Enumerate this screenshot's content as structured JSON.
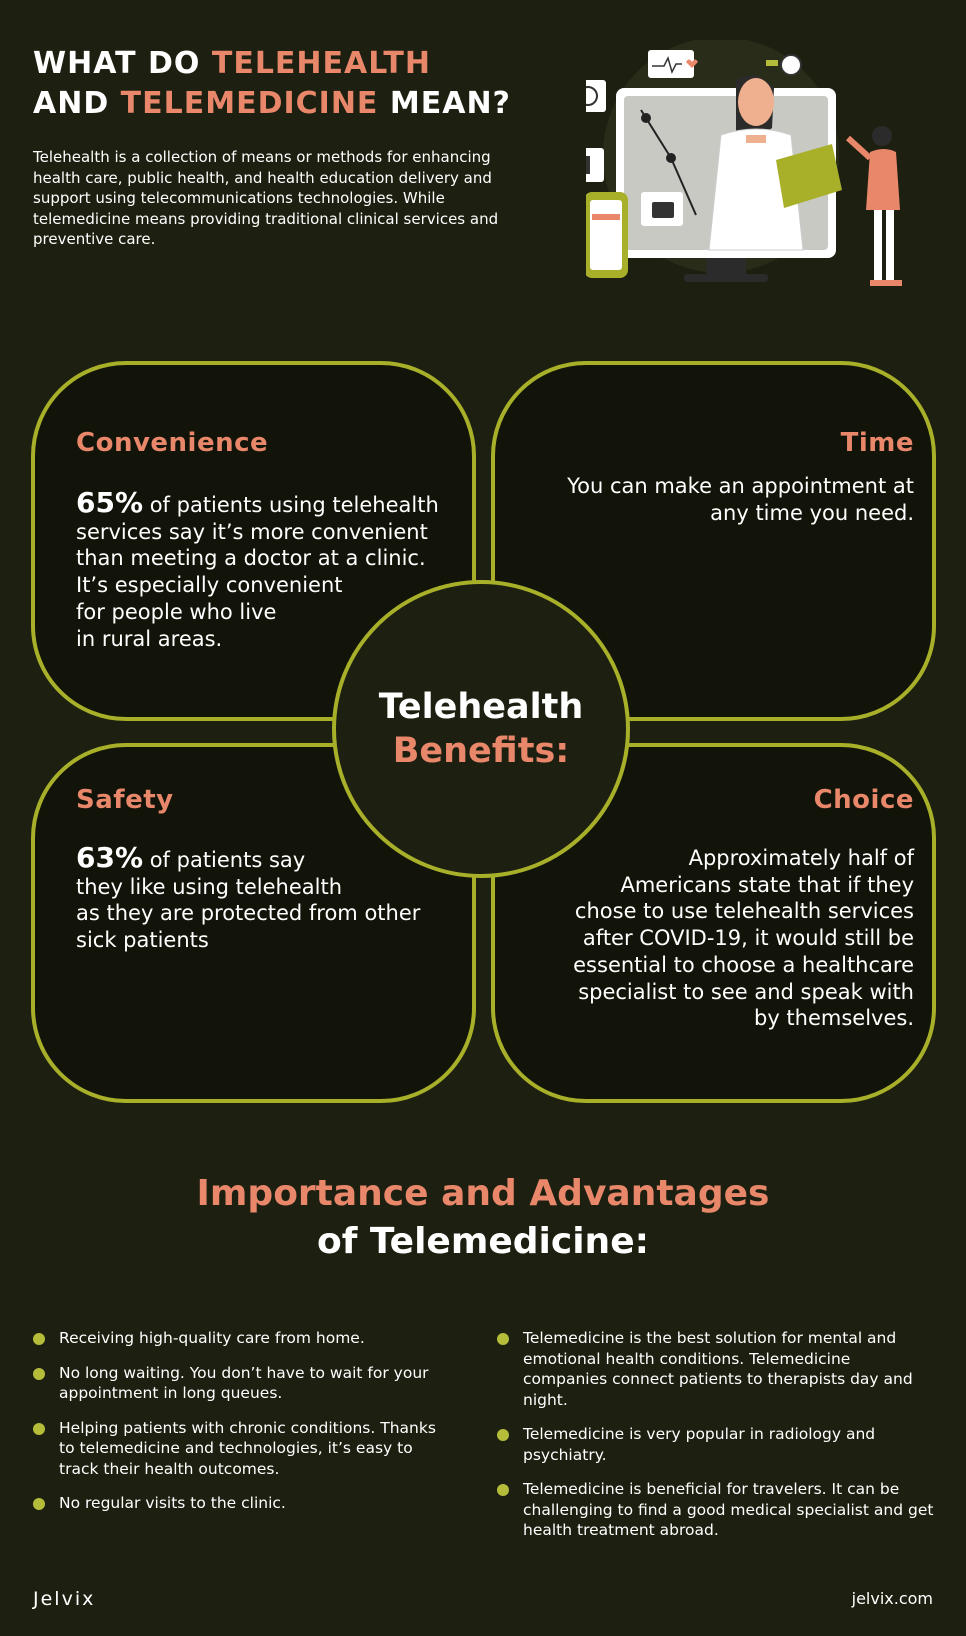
{
  "header": {
    "title_part1": "WHAT DO ",
    "title_accent1": "TELEHEALTH",
    "title_part2": "AND ",
    "title_accent2": "TELEMEDICINE",
    "title_part3": " MEAN?",
    "intro": "Telehealth is a collection of means or methods for enhancing health care, public health, and health education delivery and support using telecommunications technologies. While telemedicine means providing traditional clinical services and preventive care."
  },
  "hero": {
    "icon": "doctor-at-screen-illustration"
  },
  "benefits": {
    "hub_line1": "Telehealth",
    "hub_line2": "Benefits:",
    "convenience": {
      "title": "Convenience",
      "stat": "65%",
      "body": " of patients using telehealth\nservices say it’s more convenient\nthan meeting a doctor at a clinic.\nIt’s especially convenient\nfor people who live\nin rural areas."
    },
    "time": {
      "title": "Time",
      "body": "You can make an appointment at\nany time you need."
    },
    "safety": {
      "title": "Safety",
      "stat": "63%",
      "body": " of patients say\nthey like using telehealth\nas they are protected from other\nsick patients"
    },
    "choice": {
      "title": "Choice",
      "body": "Approximately half of\nAmericans state that if they\nchose to use telehealth services\nafter COVID-19, it would still be\nessential to choose a healthcare\nspecialist to see and speak with\nby themselves."
    }
  },
  "advantages": {
    "title_line1": "Importance and Advantages",
    "title_line2": "of Telemedicine:",
    "left": [
      "Receiving high-quality care from home.",
      "No long waiting. You don’t have to wait for your appointment in long queues.",
      "Helping patients with chronic conditions. Thanks to telemedicine and technologies, it’s easy to track their health outcomes.",
      "No regular visits to the clinic."
    ],
    "right": [
      "Telemedicine is the best solution for mental and emotional health conditions. Telemedicine companies connect patients to therapists day and night.",
      "Telemedicine is very popular in radiology and psychiatry.",
      "Telemedicine is beneficial for travelers. It can be challenging to find a good medical specialist and get health treatment abroad."
    ]
  },
  "footer": {
    "logo": "Jelvix",
    "url": "jelvix.com"
  },
  "colors": {
    "background": "#1d1f10",
    "accent": "#e8876a",
    "outline": "#a8b02a",
    "bullet": "#b5bc3a"
  }
}
